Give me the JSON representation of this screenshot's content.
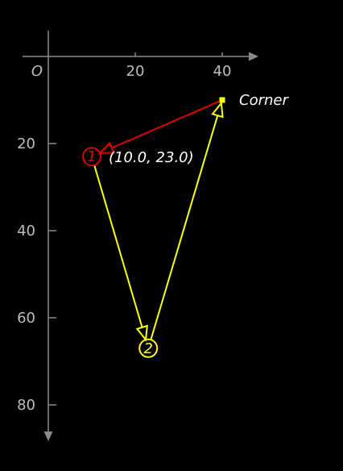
{
  "axes": {
    "origin_label": "O",
    "x_ticks": [
      20,
      40
    ],
    "y_ticks": [
      20,
      40,
      60,
      80
    ],
    "x_range": [
      0,
      48
    ],
    "y_range": [
      0,
      87
    ]
  },
  "colors": {
    "axis": "#8a8a8a",
    "tick_text": "#bdbdbd",
    "red": "#e00000",
    "yellow": "#ffff00",
    "label": "#ffffff"
  },
  "points": {
    "corner": {
      "x": 40,
      "y": 10,
      "label": "Corner"
    },
    "p1": {
      "x": 10,
      "y": 23,
      "number": "1",
      "coord_label": "(10.0, 23.0)"
    },
    "p2": {
      "x": 23,
      "y": 67,
      "number": "2"
    }
  },
  "arrows": [
    {
      "from": "corner",
      "to": "p1",
      "color": "red"
    },
    {
      "from": "p1",
      "to": "p2",
      "color": "yellow"
    },
    {
      "from": "p2",
      "to": "corner",
      "color": "yellow"
    }
  ]
}
